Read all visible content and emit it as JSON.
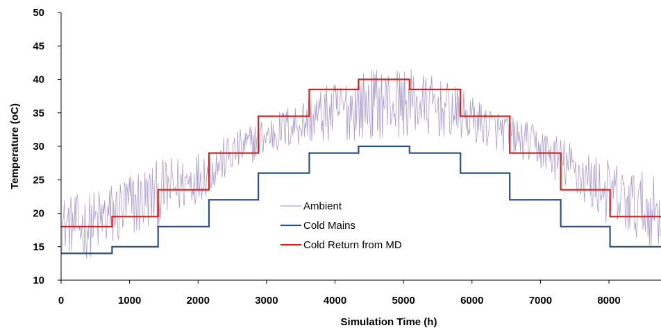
{
  "chart_data": {
    "type": "line",
    "xlabel": "Simulation Time (h)",
    "ylabel": "Temperature (oC)",
    "xlim": [
      0,
      8760
    ],
    "ylim": [
      10,
      50
    ],
    "x_ticks": [
      "0",
      "1000",
      "2000",
      "3000",
      "4000",
      "5000",
      "6000",
      "7000",
      "8000"
    ],
    "y_ticks": [
      "10",
      "15",
      "20",
      "25",
      "30",
      "35",
      "40",
      "45",
      "50"
    ],
    "grid": false,
    "legend_position": "center-left",
    "series": [
      {
        "name": "Ambient",
        "color": "#9b8abf",
        "style": "noisy",
        "x": [
          0,
          360,
          720,
          1080,
          1440,
          1800,
          2160,
          2520,
          2880,
          3240,
          3600,
          3960,
          4320,
          4680,
          5040,
          5400,
          5760,
          6120,
          6480,
          6840,
          7200,
          7560,
          7920,
          8280,
          8760
        ],
        "y": [
          18.5,
          18,
          19.5,
          21.5,
          23,
          24.5,
          26.5,
          29,
          31,
          32.5,
          34,
          35,
          36,
          36.5,
          36.5,
          36,
          35,
          33.5,
          32,
          30.5,
          28.5,
          26,
          23.5,
          21.5,
          20
        ]
      },
      {
        "name": "Cold Mains",
        "color": "#2e4f7f",
        "style": "step",
        "x": [
          0,
          744,
          744,
          1416,
          1416,
          2160,
          2160,
          2880,
          2880,
          3624,
          3624,
          4344,
          4344,
          5088,
          5088,
          5832,
          5832,
          6552,
          6552,
          7296,
          7296,
          8016,
          8016,
          8760
        ],
        "y": [
          14,
          14,
          15,
          15,
          18,
          18,
          22,
          22,
          26,
          26,
          29,
          29,
          30,
          30,
          29,
          29,
          26,
          26,
          22,
          22,
          18,
          18,
          15,
          15
        ]
      },
      {
        "name": "Cold Return from MD",
        "color": "#d42020",
        "style": "step",
        "x": [
          0,
          744,
          744,
          1416,
          1416,
          2160,
          2160,
          2880,
          2880,
          3624,
          3624,
          4344,
          4344,
          5088,
          5088,
          5832,
          5832,
          6552,
          6552,
          7296,
          7296,
          8016,
          8016,
          8760
        ],
        "y": [
          18,
          18,
          19.5,
          19.5,
          23.5,
          23.5,
          29,
          29,
          34.5,
          34.5,
          38.5,
          38.5,
          40,
          40,
          38.5,
          38.5,
          34.5,
          34.5,
          29,
          29,
          23.5,
          23.5,
          19.5,
          19.5
        ]
      }
    ]
  }
}
